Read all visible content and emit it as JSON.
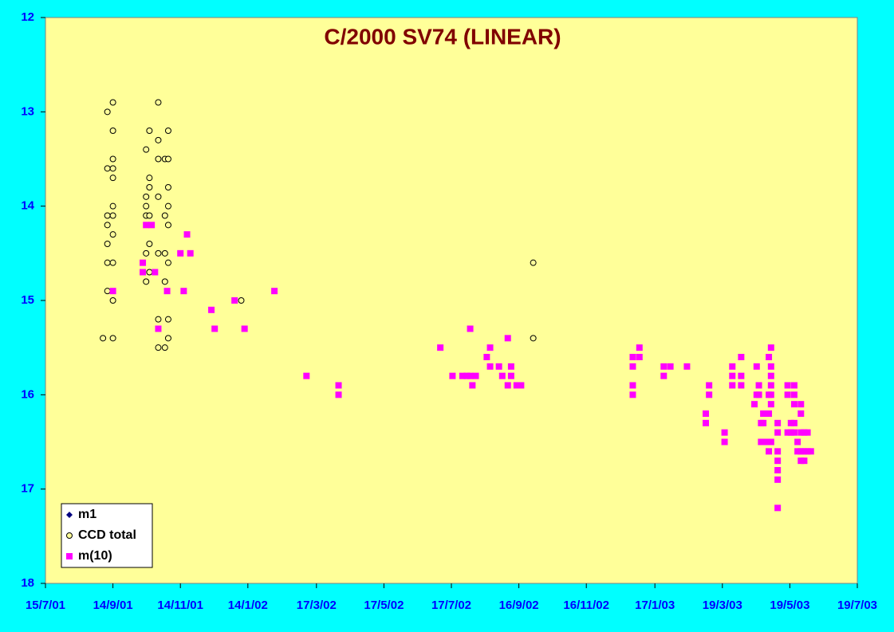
{
  "chart_data": {
    "type": "scatter",
    "title": "C/2000 SV74 (LINEAR)",
    "xlim": [
      "15/7/01",
      "19/7/03"
    ],
    "xticks": [
      "15/7/01",
      "14/9/01",
      "14/11/01",
      "14/1/02",
      "17/3/02",
      "17/5/02",
      "17/7/02",
      "16/9/02",
      "16/11/02",
      "17/1/03",
      "19/3/03",
      "19/5/03",
      "19/7/03"
    ],
    "ylim": [
      12,
      18
    ],
    "yticks": [
      12,
      13,
      14,
      15,
      16,
      17,
      18
    ],
    "y_reversed": true,
    "legend": "lower left",
    "series": [
      {
        "name": "m1",
        "color": "#000080",
        "marker": "diamond",
        "x": [],
        "values": []
      },
      {
        "name": "CCD total",
        "color": "#000000",
        "marker": "circle",
        "x": [
          "5/9/01",
          "9/9/01",
          "9/9/01",
          "9/9/01",
          "9/9/01",
          "9/9/01",
          "9/9/01",
          "9/9/01",
          "14/9/01",
          "14/9/01",
          "14/9/01",
          "14/9/01",
          "14/9/01",
          "14/9/01",
          "14/9/01",
          "14/9/01",
          "14/9/01",
          "14/9/01",
          "14/9/01",
          "14/10/01",
          "14/10/01",
          "14/10/01",
          "14/10/01",
          "14/10/01",
          "14/10/01",
          "17/10/01",
          "17/10/01",
          "17/10/01",
          "17/10/01",
          "17/10/01",
          "17/10/01",
          "25/10/01",
          "25/10/01",
          "25/10/01",
          "25/10/01",
          "25/10/01",
          "25/10/01",
          "25/10/01",
          "31/10/01",
          "31/10/01",
          "31/10/01",
          "31/10/01",
          "31/10/01",
          "3/11/01",
          "3/11/01",
          "3/11/01",
          "3/11/01",
          "3/11/01",
          "3/11/01",
          "3/11/01",
          "3/11/01",
          "8/1/02",
          "29/9/02",
          "29/9/02"
        ],
        "values": [
          15.4,
          13.0,
          13.6,
          14.1,
          14.2,
          14.4,
          14.6,
          14.9,
          12.9,
          13.2,
          13.5,
          13.6,
          13.7,
          14.0,
          14.1,
          14.3,
          14.6,
          15.0,
          15.4,
          13.4,
          13.9,
          14.0,
          14.1,
          14.5,
          14.8,
          13.2,
          13.7,
          13.8,
          14.1,
          14.4,
          14.7,
          12.9,
          13.3,
          13.5,
          13.9,
          14.5,
          15.2,
          15.5,
          13.5,
          14.1,
          14.5,
          14.8,
          15.5,
          13.2,
          13.5,
          13.8,
          14.0,
          14.2,
          14.6,
          15.2,
          15.4,
          15.0,
          14.6,
          15.4
        ]
      },
      {
        "name": "m(10)",
        "color": "#ff00ff",
        "marker": "square",
        "x": [
          "14/9/01",
          "11/10/01",
          "11/10/01",
          "14/10/01",
          "19/10/01",
          "22/10/01",
          "25/10/01",
          "2/11/01",
          "14/11/01",
          "17/11/01",
          "20/11/01",
          "23/11/01",
          "12/12/01",
          "15/12/01",
          "2/1/02",
          "11/1/02",
          "7/2/02",
          "8/3/02",
          "6/4/02",
          "6/4/02",
          "7/7/02",
          "18/7/02",
          "27/7/02",
          "31/7/02",
          "3/8/02",
          "3/8/02",
          "5/8/02",
          "8/8/02",
          "18/8/02",
          "21/8/02",
          "21/8/02",
          "29/8/02",
          "1/9/02",
          "6/9/02",
          "6/9/02",
          "9/9/02",
          "9/9/02",
          "14/9/02",
          "18/9/02",
          "28/12/02",
          "28/12/02",
          "28/12/02",
          "28/12/02",
          "3/1/03",
          "3/1/03",
          "25/1/03",
          "25/1/03",
          "31/1/03",
          "15/2/03",
          "4/3/03",
          "4/3/03",
          "7/3/03",
          "7/3/03",
          "21/3/03",
          "21/3/03",
          "28/3/03",
          "28/3/03",
          "28/3/03",
          "5/4/03",
          "5/4/03",
          "5/4/03",
          "17/4/03",
          "19/4/03",
          "19/4/03",
          "21/4/03",
          "21/4/03",
          "23/4/03",
          "23/4/03",
          "25/4/03",
          "25/4/03",
          "28/4/03",
          "28/4/03",
          "30/4/03",
          "30/4/03",
          "30/4/03",
          "30/4/03",
          "2/5/03",
          "2/5/03",
          "2/5/03",
          "2/5/03",
          "2/5/03",
          "2/5/03",
          "2/5/03",
          "8/5/03",
          "8/5/03",
          "8/5/03",
          "8/5/03",
          "8/5/03",
          "8/5/03",
          "8/5/03",
          "17/5/03",
          "17/5/03",
          "17/5/03",
          "20/5/03",
          "20/5/03",
          "23/5/03",
          "23/5/03",
          "23/5/03",
          "23/5/03",
          "23/5/03",
          "26/5/03",
          "26/5/03",
          "29/5/03",
          "29/5/03",
          "29/5/03",
          "29/5/03",
          "29/5/03",
          "1/6/03",
          "1/6/03",
          "1/6/03",
          "4/6/03",
          "4/6/03",
          "7/6/03"
        ],
        "values": [
          14.9,
          14.6,
          14.7,
          14.2,
          14.2,
          14.7,
          15.3,
          14.9,
          14.5,
          14.9,
          14.3,
          14.5,
          15.1,
          15.3,
          15.0,
          15.3,
          14.9,
          15.8,
          15.9,
          16.0,
          15.5,
          15.8,
          15.8,
          15.8,
          15.3,
          15.8,
          15.9,
          15.8,
          15.6,
          15.5,
          15.7,
          15.7,
          15.8,
          15.9,
          15.4,
          15.7,
          15.8,
          15.9,
          15.9,
          15.6,
          15.7,
          15.9,
          16.0,
          15.5,
          15.6,
          15.7,
          15.8,
          15.7,
          15.7,
          16.2,
          16.3,
          15.9,
          16.0,
          16.4,
          16.5,
          15.7,
          15.8,
          15.9,
          15.6,
          15.8,
          15.9,
          16.1,
          15.7,
          16.0,
          15.9,
          16.0,
          16.3,
          16.5,
          16.2,
          16.3,
          16.2,
          16.5,
          15.6,
          16.0,
          16.2,
          16.6,
          15.5,
          15.7,
          15.8,
          15.9,
          16.0,
          16.1,
          16.5,
          16.3,
          16.4,
          16.6,
          16.7,
          16.8,
          16.9,
          17.2,
          15.9,
          16.0,
          16.4,
          16.3,
          16.4,
          15.9,
          16.0,
          16.1,
          16.3,
          16.4,
          16.5,
          16.6,
          16.1,
          16.2,
          16.4,
          16.6,
          16.7,
          16.4,
          16.6,
          16.7,
          16.4,
          16.6,
          16.6
        ]
      }
    ]
  }
}
